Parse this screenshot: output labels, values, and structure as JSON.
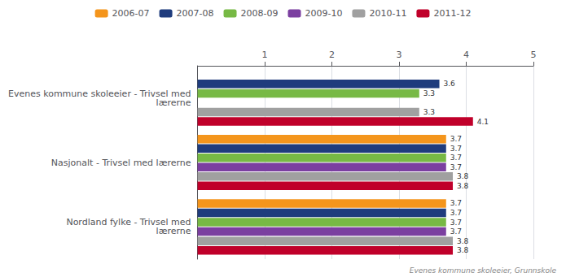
{
  "chart_data": {
    "type": "bar",
    "orientation": "horizontal",
    "categories": [
      "Evenes kommune skoleeier - Trivsel med\nlærerne",
      "Nasjonalt - Trivsel med lærerne",
      "Nordland fylke - Trivsel med\nlærerne"
    ],
    "series": [
      {
        "name": "2006-07",
        "color": "#f4951c",
        "values": [
          null,
          3.7,
          3.7
        ]
      },
      {
        "name": "2007-08",
        "color": "#1f3c7d",
        "values": [
          3.6,
          3.7,
          3.7
        ]
      },
      {
        "name": "2008-09",
        "color": "#77b945",
        "values": [
          3.3,
          3.7,
          3.7
        ]
      },
      {
        "name": "2009-10",
        "color": "#7b3fa0",
        "values": [
          null,
          3.7,
          3.7
        ]
      },
      {
        "name": "2010-11",
        "color": "#a0a0a0",
        "values": [
          3.3,
          3.8,
          3.8
        ]
      },
      {
        "name": "2011-12",
        "color": "#c0002a",
        "values": [
          4.1,
          3.8,
          3.8
        ]
      }
    ],
    "xlim": [
      0,
      5
    ],
    "xticks": [
      1,
      2,
      3,
      4,
      5
    ],
    "grid": true,
    "legend": "top",
    "data_labels": true,
    "annotations": [
      "Evenes kommune skoleeier, Grunnskole"
    ]
  }
}
